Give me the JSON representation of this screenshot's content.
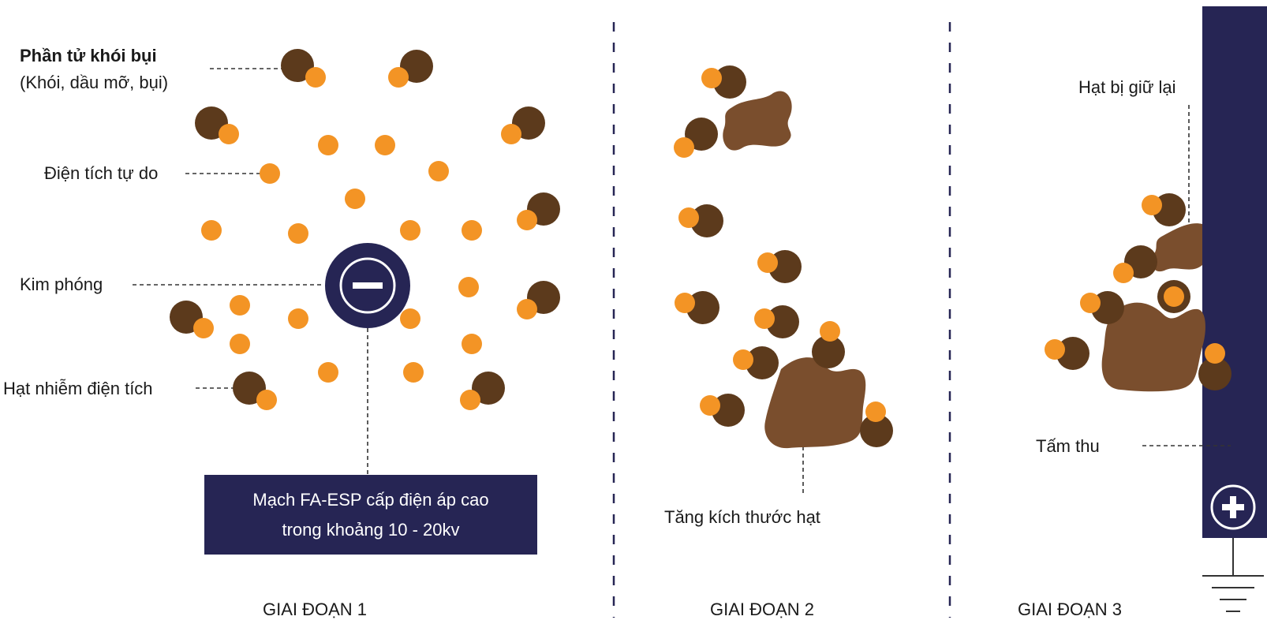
{
  "colors": {
    "charge": "#f39425",
    "particle": "#5c3a1c",
    "aggregate": "#7a4e2d",
    "plate": "#262554",
    "divider": "#262554",
    "leader": "#333333",
    "text": "#1a1a1a"
  },
  "labels": {
    "smoke_particle_title": "Phần tử khói bụi",
    "smoke_particle_sub": "(Khói, dầu mỡ, bụi)",
    "free_charge": "Điện tích tự do",
    "needle": "Kim phóng",
    "charged_particle": "Hạt nhiễm điện tích",
    "circuit_line1": "Mạch FA-ESP cấp điện áp cao",
    "circuit_line2": "trong khoảng 10 - 20kv",
    "size_increase": "Tăng kích thước hạt",
    "retained_particle": "Hạt bị giữ lại",
    "collector_plate": "Tấm thu"
  },
  "stages": [
    "GIAI ĐOẠN 1",
    "GIAI ĐOẠN 2",
    "GIAI ĐOẠN 3"
  ],
  "icons": {
    "needle": "minus-icon",
    "plate": "plus-icon",
    "ground": "ground-icon"
  }
}
